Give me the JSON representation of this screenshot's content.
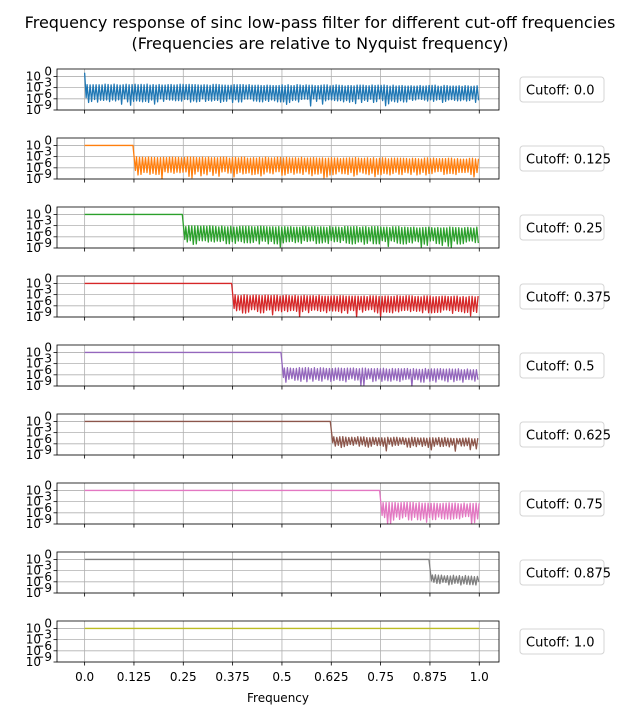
{
  "title_line1": "Frequency response of sinc low-pass filter for different cut-off frequencies",
  "title_line2": "(Frequencies are relative to Nyquist frequency)",
  "chart_data": {
    "type": "line",
    "xlabel": "Frequency",
    "ylabel": "",
    "xlim": [
      -0.07,
      1.05
    ],
    "xticks": [
      0.0,
      0.125,
      0.25,
      0.375,
      0.5,
      0.625,
      0.75,
      0.875,
      1.0
    ],
    "xtick_labels": [
      "0.0",
      "0.125",
      "0.25",
      "0.375",
      "0.5",
      "0.625",
      "0.75",
      "0.875",
      "1.0"
    ],
    "yscale": "log",
    "ylim": [
      1e-09,
      100
    ],
    "yticks": [
      1,
      0.001,
      1e-06,
      1e-09
    ],
    "ytick_labels": [
      "10^0",
      "10^-3",
      "10^-6",
      "10^-9"
    ],
    "grid": true,
    "legend_position": "right",
    "series": [
      {
        "name": "Cutoff: 0.0",
        "cutoff": 0.0,
        "color": "#1f77b4",
        "passband_value": 1,
        "stopband_range": [
          1e-06,
          0.01
        ]
      },
      {
        "name": "Cutoff: 0.125",
        "cutoff": 0.125,
        "color": "#ff7f0e",
        "passband_value": 1,
        "stopband_range": [
          1e-07,
          0.001
        ]
      },
      {
        "name": "Cutoff: 0.25",
        "cutoff": 0.25,
        "color": "#2ca02c",
        "passband_value": 1,
        "stopband_range": [
          1e-07,
          0.001
        ]
      },
      {
        "name": "Cutoff: 0.375",
        "cutoff": 0.375,
        "color": "#d62728",
        "passband_value": 1,
        "stopband_range": [
          1e-07,
          0.001
        ]
      },
      {
        "name": "Cutoff: 0.5",
        "cutoff": 0.5,
        "color": "#9467bd",
        "passband_value": 1,
        "stopband_range": [
          1e-07,
          0.0001
        ]
      },
      {
        "name": "Cutoff: 0.625",
        "cutoff": 0.625,
        "color": "#8c564b",
        "passband_value": 1,
        "stopband_range": [
          1e-06,
          0.0001
        ]
      },
      {
        "name": "Cutoff: 0.75",
        "cutoff": 0.75,
        "color": "#e377c2",
        "passband_value": 1,
        "stopband_range": [
          1e-07,
          0.001
        ]
      },
      {
        "name": "Cutoff: 0.875",
        "cutoff": 0.875,
        "color": "#7f7f7f",
        "passband_value": 1,
        "stopband_range": [
          1e-06,
          0.0001
        ]
      },
      {
        "name": "Cutoff: 1.0",
        "cutoff": 1.0,
        "color": "#bcbd22",
        "passband_value": 1,
        "stopband_range": [
          1,
          1
        ]
      }
    ]
  }
}
